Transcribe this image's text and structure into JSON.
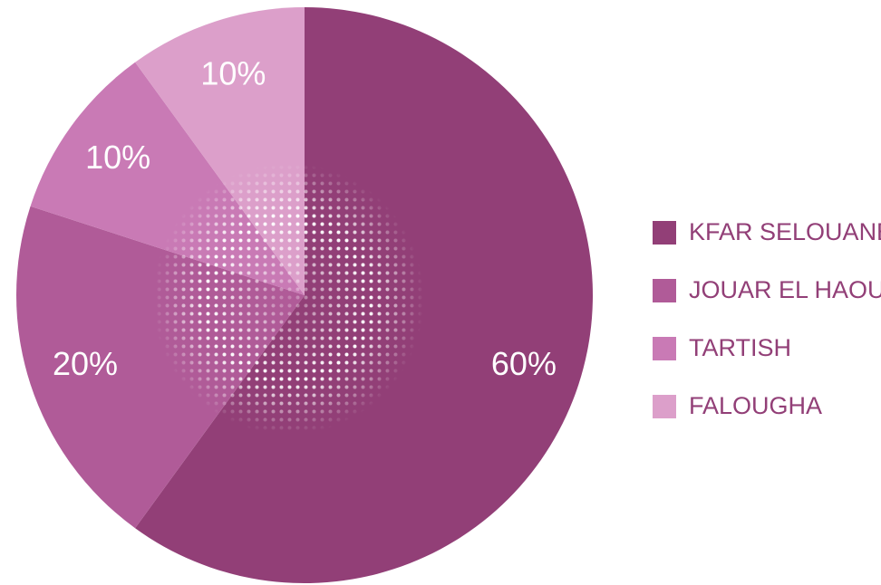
{
  "chart_data": {
    "type": "pie",
    "categories": [
      "KFAR SELOUANE",
      "JOUAR EL HAOUZ",
      "TARTISH",
      "FALOUGHA"
    ],
    "values": [
      60,
      20,
      10,
      10
    ],
    "value_labels": [
      "60%",
      "20%",
      "10%",
      "10%"
    ],
    "colors": [
      "#923f77",
      "#b05b98",
      "#c97ab5",
      "#dc9fca"
    ],
    "legend": "right"
  }
}
